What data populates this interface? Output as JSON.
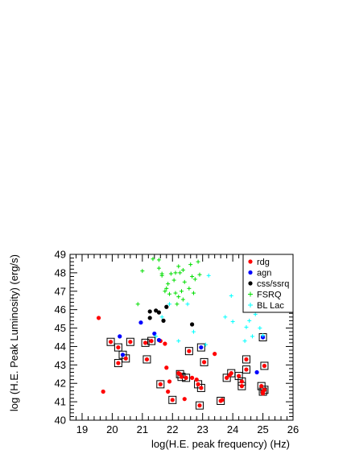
{
  "chart_data": {
    "type": "scatter",
    "xlabel": "log(H.E. peak frequency) (Hz)",
    "ylabel": "log (H.E. Peak Luminosity) (erg/s)",
    "xlim": [
      18.6,
      26
    ],
    "ylim": [
      40,
      49
    ],
    "xticks": [
      19,
      20,
      21,
      22,
      23,
      24,
      25,
      26
    ],
    "yticks": [
      40,
      41,
      42,
      43,
      44,
      45,
      46,
      47,
      48,
      49
    ],
    "grid": false,
    "legend_position": "top-right",
    "series": [
      {
        "name": "rdg",
        "marker": "dot",
        "color": "#ff0000",
        "points": [
          [
            19.55,
            45.55
          ],
          [
            19.7,
            41.55
          ],
          [
            19.95,
            44.25
          ],
          [
            20.2,
            43.95
          ],
          [
            20.2,
            43.1
          ],
          [
            20.45,
            43.35
          ],
          [
            20.6,
            44.25
          ],
          [
            21.1,
            44.2
          ],
          [
            21.15,
            43.3
          ],
          [
            21.3,
            44.3
          ],
          [
            21.6,
            44.3
          ],
          [
            21.6,
            41.95
          ],
          [
            21.75,
            44.15
          ],
          [
            21.8,
            42.85
          ],
          [
            21.85,
            41.55
          ],
          [
            21.9,
            42.1
          ],
          [
            22.0,
            41.1
          ],
          [
            22.2,
            42.55
          ],
          [
            22.25,
            42.5
          ],
          [
            22.3,
            42.35
          ],
          [
            22.4,
            41.15
          ],
          [
            22.45,
            42.3
          ],
          [
            22.55,
            43.75
          ],
          [
            22.65,
            42.3
          ],
          [
            22.8,
            42.2
          ],
          [
            22.85,
            41.95
          ],
          [
            22.9,
            40.8
          ],
          [
            22.95,
            41.75
          ],
          [
            23.05,
            43.15
          ],
          [
            23.4,
            43.6
          ],
          [
            23.6,
            41.05
          ],
          [
            23.65,
            41.1
          ],
          [
            23.8,
            42.3
          ],
          [
            23.9,
            42.45
          ],
          [
            23.95,
            42.55
          ],
          [
            24.2,
            42.4
          ],
          [
            24.3,
            42.1
          ],
          [
            24.3,
            41.85
          ],
          [
            24.45,
            43.3
          ],
          [
            24.45,
            42.75
          ],
          [
            24.95,
            41.85
          ],
          [
            25.0,
            41.55
          ],
          [
            25.05,
            41.65
          ],
          [
            25.05,
            42.95
          ],
          [
            25.0,
            41.45
          ]
        ]
      },
      {
        "name": "agn",
        "marker": "dot",
        "color": "#0000ff",
        "points": [
          [
            20.25,
            44.55
          ],
          [
            20.35,
            43.55
          ],
          [
            20.95,
            45.3
          ],
          [
            21.4,
            44.7
          ],
          [
            21.55,
            44.35
          ],
          [
            22.95,
            43.95
          ],
          [
            24.8,
            42.6
          ],
          [
            25.0,
            44.5
          ]
        ]
      },
      {
        "name": "css/ssrq",
        "marker": "dot",
        "color": "#000000",
        "points": [
          [
            21.25,
            45.9
          ],
          [
            21.25,
            45.55
          ],
          [
            21.45,
            45.95
          ],
          [
            21.55,
            45.85
          ],
          [
            21.7,
            45.4
          ],
          [
            21.8,
            46.15
          ],
          [
            22.65,
            45.2
          ]
        ]
      },
      {
        "name": "FSRQ",
        "marker": "cross",
        "color": "#00dd00",
        "points": [
          [
            20.85,
            46.3
          ],
          [
            21.0,
            48.1
          ],
          [
            21.35,
            48.75
          ],
          [
            21.55,
            48.7
          ],
          [
            21.55,
            48.25
          ],
          [
            21.65,
            47.95
          ],
          [
            21.75,
            47.0
          ],
          [
            21.8,
            47.15
          ],
          [
            21.85,
            47.4
          ],
          [
            21.9,
            46.85
          ],
          [
            21.95,
            47.95
          ],
          [
            22.05,
            47.6
          ],
          [
            22.1,
            46.9
          ],
          [
            22.1,
            48.0
          ],
          [
            22.2,
            48.35
          ],
          [
            22.25,
            48.0
          ],
          [
            22.2,
            46.7
          ],
          [
            22.35,
            48.15
          ],
          [
            22.3,
            47.0
          ],
          [
            22.35,
            46.55
          ],
          [
            22.4,
            47.5
          ],
          [
            22.55,
            47.15
          ],
          [
            22.65,
            47.8
          ],
          [
            22.6,
            48.45
          ],
          [
            22.75,
            47.65
          ],
          [
            22.85,
            48.6
          ],
          [
            22.9,
            47.9
          ],
          [
            22.7,
            46.9
          ],
          [
            21.65,
            47.85
          ],
          [
            22.15,
            46.3
          ]
        ]
      },
      {
        "name": "BL Lac",
        "marker": "cross",
        "color": "#00ffff",
        "points": [
          [
            21.45,
            44.55
          ],
          [
            21.65,
            45.6
          ],
          [
            21.9,
            46.3
          ],
          [
            22.2,
            44.3
          ],
          [
            22.5,
            46.3
          ],
          [
            22.7,
            44.8
          ],
          [
            23.1,
            44.1
          ],
          [
            23.2,
            47.85
          ],
          [
            23.75,
            45.6
          ],
          [
            23.95,
            46.75
          ],
          [
            24.0,
            45.35
          ],
          [
            24.4,
            44.3
          ],
          [
            24.45,
            45.05
          ],
          [
            24.55,
            45.4
          ],
          [
            24.65,
            44.55
          ],
          [
            24.75,
            45.75
          ],
          [
            24.9,
            45.0
          ],
          [
            25.0,
            44.6
          ],
          [
            24.7,
            46.0
          ]
        ]
      }
    ],
    "boxed_points": [
      [
        19.95,
        44.25
      ],
      [
        20.2,
        43.95
      ],
      [
        20.2,
        43.1
      ],
      [
        20.35,
        43.55
      ],
      [
        20.45,
        43.35
      ],
      [
        20.6,
        44.25
      ],
      [
        21.1,
        44.2
      ],
      [
        21.15,
        43.3
      ],
      [
        21.3,
        44.3
      ],
      [
        21.6,
        41.95
      ],
      [
        22.0,
        41.1
      ],
      [
        22.25,
        42.5
      ],
      [
        22.3,
        42.35
      ],
      [
        22.45,
        42.3
      ],
      [
        22.55,
        43.75
      ],
      [
        22.85,
        41.95
      ],
      [
        22.9,
        40.8
      ],
      [
        22.95,
        41.75
      ],
      [
        22.95,
        43.95
      ],
      [
        23.05,
        43.15
      ],
      [
        23.6,
        41.05
      ],
      [
        23.8,
        42.3
      ],
      [
        23.95,
        42.55
      ],
      [
        24.2,
        42.4
      ],
      [
        24.3,
        42.1
      ],
      [
        24.3,
        41.85
      ],
      [
        24.45,
        43.3
      ],
      [
        24.45,
        42.75
      ],
      [
        24.95,
        41.85
      ],
      [
        25.0,
        44.5
      ],
      [
        25.0,
        41.55
      ],
      [
        25.05,
        41.65
      ],
      [
        25.05,
        42.95
      ]
    ]
  }
}
